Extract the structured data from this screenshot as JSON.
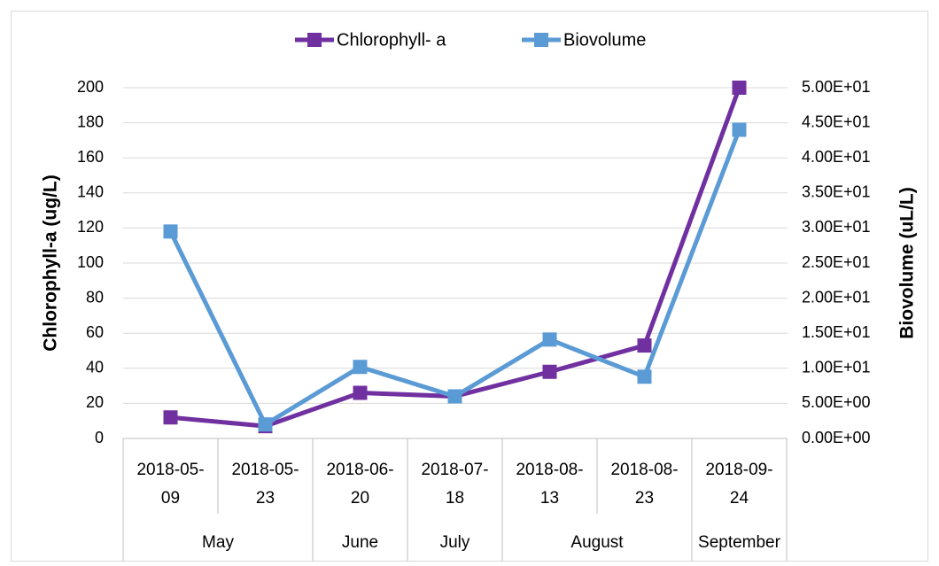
{
  "chart_data": {
    "type": "line",
    "categories": [
      "2018-05-09",
      "2018-05-23",
      "2018-06-20",
      "2018-07-18",
      "2018-08-13",
      "2018-08-23",
      "2018-09-24"
    ],
    "groups": [
      {
        "name": "May",
        "span": 2
      },
      {
        "name": "June",
        "span": 1
      },
      {
        "name": "July",
        "span": 1
      },
      {
        "name": "August",
        "span": 2
      },
      {
        "name": "September",
        "span": 1
      }
    ],
    "series": [
      {
        "name": "Chlorophyll- a",
        "color": "#7030a0",
        "values": [
          12,
          7,
          26,
          24,
          38,
          53,
          200
        ]
      },
      {
        "name": "Biovolume",
        "color": "#5b9bd5",
        "axis": "y2",
        "values": [
          29.5,
          2.0,
          10.2,
          6.0,
          14.1,
          8.8,
          44.0
        ]
      }
    ],
    "y_label": "Chlorophyll-a  (ug/L)",
    "y2_label": "Biovolume  (uL/L)",
    "ylim": [
      0,
      200
    ],
    "yticks": [
      0,
      20,
      40,
      60,
      80,
      100,
      120,
      140,
      160,
      180,
      200
    ],
    "y2lim": [
      0,
      50
    ],
    "y2ticks": [
      {
        "value": 0,
        "label": "0.00E+00"
      },
      {
        "value": 5,
        "label": "5.00E+00"
      },
      {
        "value": 10,
        "label": "1.00E+01"
      },
      {
        "value": 15,
        "label": "1.50E+01"
      },
      {
        "value": 20,
        "label": "2.00E+01"
      },
      {
        "value": 25,
        "label": "2.50E+01"
      },
      {
        "value": 30,
        "label": "3.00E+01"
      },
      {
        "value": 35,
        "label": "3.50E+01"
      },
      {
        "value": 40,
        "label": "4.00E+01"
      },
      {
        "value": 45,
        "label": "4.50E+01"
      },
      {
        "value": 50,
        "label": "5.00E+01"
      }
    ],
    "grid": true,
    "legend": "top"
  }
}
